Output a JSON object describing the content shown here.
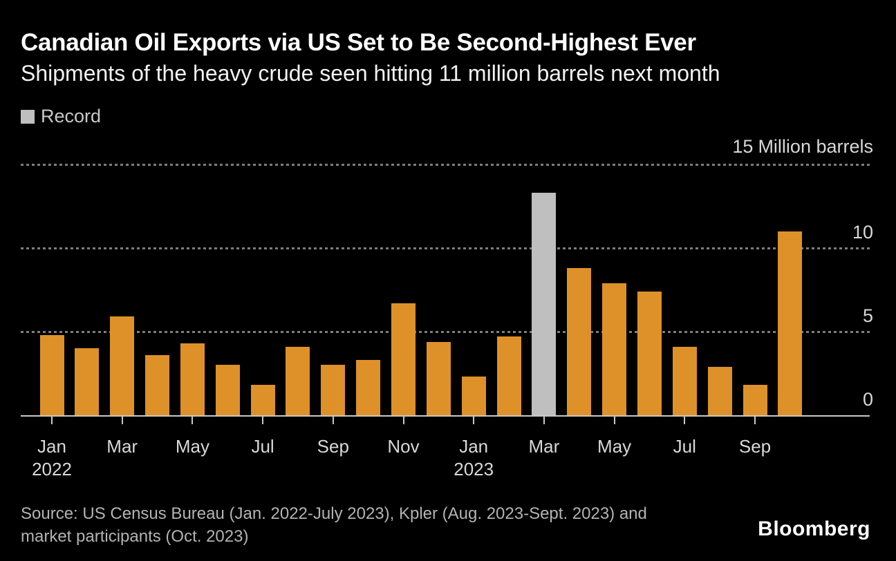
{
  "title": "Canadian Oil Exports via US Set to Be Second-Highest Ever",
  "subtitle": "Shipments of the heavy crude seen hitting 11 million barrels next month",
  "legend": {
    "label": "Record",
    "color": "#bfbfbf"
  },
  "y_axis": {
    "unit_value": "15",
    "unit_text": "Million barrels",
    "tick_labels": [
      {
        "text": "10",
        "value": 10
      },
      {
        "text": "5",
        "value": 5
      },
      {
        "text": "0",
        "value": 0
      }
    ]
  },
  "source": {
    "line1": "Source: US Census Bureau (Jan. 2022-July 2023), Kpler (Aug. 2023-Sept. 2023) and",
    "line2": "market participants (Oct. 2023)"
  },
  "brand": "Bloomberg",
  "chart_data": {
    "type": "bar",
    "title": "Canadian Oil Exports via US Set to Be Second-Highest Ever",
    "subtitle": "Shipments of the heavy crude seen hitting 11 million barrels next month",
    "ylabel": "Million barrels",
    "xlabel": "",
    "ylim": [
      0,
      15
    ],
    "gridlines": [
      5,
      10,
      15
    ],
    "grid_style": "dotted",
    "legend_position": "top-left",
    "categories": [
      "Jan 2022",
      "Feb 2022",
      "Mar 2022",
      "Apr 2022",
      "May 2022",
      "Jun 2022",
      "Jul 2022",
      "Aug 2022",
      "Sep 2022",
      "Oct 2022",
      "Nov 2022",
      "Dec 2022",
      "Jan 2023",
      "Feb 2023",
      "Mar 2023",
      "Apr 2023",
      "May 2023",
      "Jun 2023",
      "Jul 2023",
      "Aug 2023",
      "Sep 2023",
      "Oct 2023"
    ],
    "values": [
      4.8,
      4.0,
      5.9,
      3.6,
      4.3,
      3.0,
      1.8,
      4.1,
      3.0,
      3.3,
      6.7,
      4.4,
      2.3,
      4.7,
      13.3,
      8.8,
      7.9,
      7.4,
      4.1,
      2.9,
      1.8,
      11.0
    ],
    "record_index": 14,
    "record_label": "Record",
    "colors": {
      "bar": "#de9128",
      "record": "#bfbfbf"
    },
    "x_ticks": [
      {
        "label": "Jan",
        "year": "2022",
        "index": 0
      },
      {
        "label": "Mar",
        "index": 2
      },
      {
        "label": "May",
        "index": 4
      },
      {
        "label": "Jul",
        "index": 6
      },
      {
        "label": "Sep",
        "index": 8
      },
      {
        "label": "Nov",
        "index": 10
      },
      {
        "label": "Jan",
        "year": "2023",
        "index": 12
      },
      {
        "label": "Mar",
        "index": 14
      },
      {
        "label": "May",
        "index": 16
      },
      {
        "label": "Jul",
        "index": 18
      },
      {
        "label": "Sep",
        "index": 20
      }
    ]
  }
}
